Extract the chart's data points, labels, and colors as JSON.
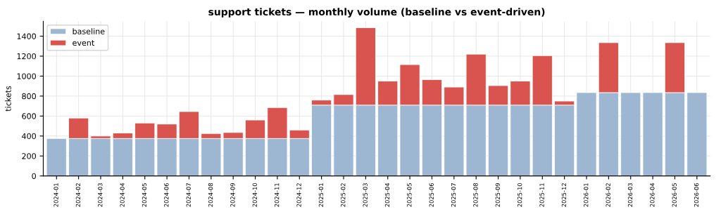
{
  "chart_data": {
    "type": "bar",
    "title": "support tickets — monthly volume (baseline vs event-driven)",
    "ylabel": "tickets",
    "categories": [
      "2024-01",
      "2024-02",
      "2024-03",
      "2024-04",
      "2024-05",
      "2024-06",
      "2024-07",
      "2024-08",
      "2024-09",
      "2024-10",
      "2024-11",
      "2024-12",
      "2025-01",
      "2025-02",
      "2025-03",
      "2025-04",
      "2025-05",
      "2025-06",
      "2025-07",
      "2025-08",
      "2025-09",
      "2025-10",
      "2025-11",
      "2025-12",
      "2026-01",
      "2026-02",
      "2026-03",
      "2026-04",
      "2026-05",
      "2026-06"
    ],
    "stacked": true,
    "series": [
      {
        "name": "baseline",
        "color": "#9db7d2",
        "values": [
          375,
          375,
          375,
          375,
          375,
          375,
          375,
          375,
          375,
          375,
          375,
          375,
          710,
          710,
          710,
          710,
          710,
          710,
          710,
          710,
          710,
          710,
          710,
          710,
          835,
          835,
          835,
          835,
          835,
          835
        ]
      },
      {
        "name": "event",
        "color": "#d9534f",
        "values": [
          null,
          205,
          25,
          55,
          155,
          145,
          270,
          50,
          60,
          185,
          310,
          85,
          50,
          105,
          775,
          240,
          405,
          255,
          180,
          510,
          195,
          240,
          495,
          40,
          null,
          500,
          null,
          null,
          500,
          null
        ]
      }
    ],
    "ylim": [
      0,
      1550
    ],
    "yticks": [
      0,
      200,
      400,
      600,
      800,
      1000,
      1200,
      1400
    ],
    "grid": true,
    "legend": "top left"
  }
}
